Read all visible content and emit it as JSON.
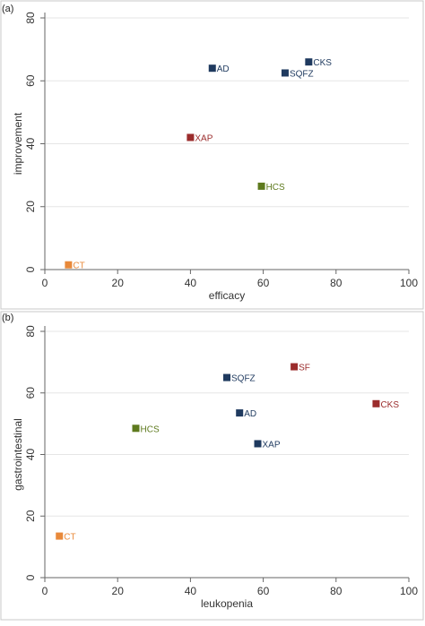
{
  "chart_data": [
    {
      "type": "scatter",
      "panel_label": "(a)",
      "xlabel": "efficacy",
      "ylabel": "improvement",
      "xlim": [
        0,
        100
      ],
      "ylim": [
        0,
        80
      ],
      "x_ticks": [
        0,
        20,
        40,
        60,
        80,
        100
      ],
      "y_ticks": [
        0,
        20,
        40,
        60,
        80
      ],
      "grid": "horizontal",
      "points": [
        {
          "label": "CT",
          "x": 6.5,
          "y": 1.5,
          "color": "#E8893A"
        },
        {
          "label": "XAP",
          "x": 40,
          "y": 42,
          "color": "#9B2C2C"
        },
        {
          "label": "HCS",
          "x": 59.5,
          "y": 26.5,
          "color": "#5E7A1E"
        },
        {
          "label": "AD",
          "x": 46,
          "y": 64,
          "color": "#1F3A5F"
        },
        {
          "label": "SQFZ",
          "x": 66,
          "y": 62.5,
          "color": "#1F3A5F"
        },
        {
          "label": "CKS",
          "x": 72.5,
          "y": 66,
          "color": "#1F3A5F"
        }
      ]
    },
    {
      "type": "scatter",
      "panel_label": "(b)",
      "xlabel": "leukopenia",
      "ylabel": "gastrointestinal",
      "xlim": [
        0,
        100
      ],
      "ylim": [
        0,
        80
      ],
      "x_ticks": [
        0,
        20,
        40,
        60,
        80,
        100
      ],
      "y_ticks": [
        0,
        20,
        40,
        60,
        80
      ],
      "grid": "horizontal",
      "points": [
        {
          "label": "CT",
          "x": 4,
          "y": 13.5,
          "color": "#E8893A"
        },
        {
          "label": "HCS",
          "x": 25,
          "y": 48.5,
          "color": "#5E7A1E"
        },
        {
          "label": "SQFZ",
          "x": 50,
          "y": 65,
          "color": "#1F3A5F"
        },
        {
          "label": "AD",
          "x": 53.5,
          "y": 53.5,
          "color": "#1F3A5F"
        },
        {
          "label": "XAP",
          "x": 58.5,
          "y": 43.5,
          "color": "#1F3A5F"
        },
        {
          "label": "SF",
          "x": 68.5,
          "y": 68.5,
          "color": "#9B2C2C"
        },
        {
          "label": "CKS",
          "x": 91,
          "y": 56.5,
          "color": "#9B2C2C"
        }
      ]
    }
  ]
}
